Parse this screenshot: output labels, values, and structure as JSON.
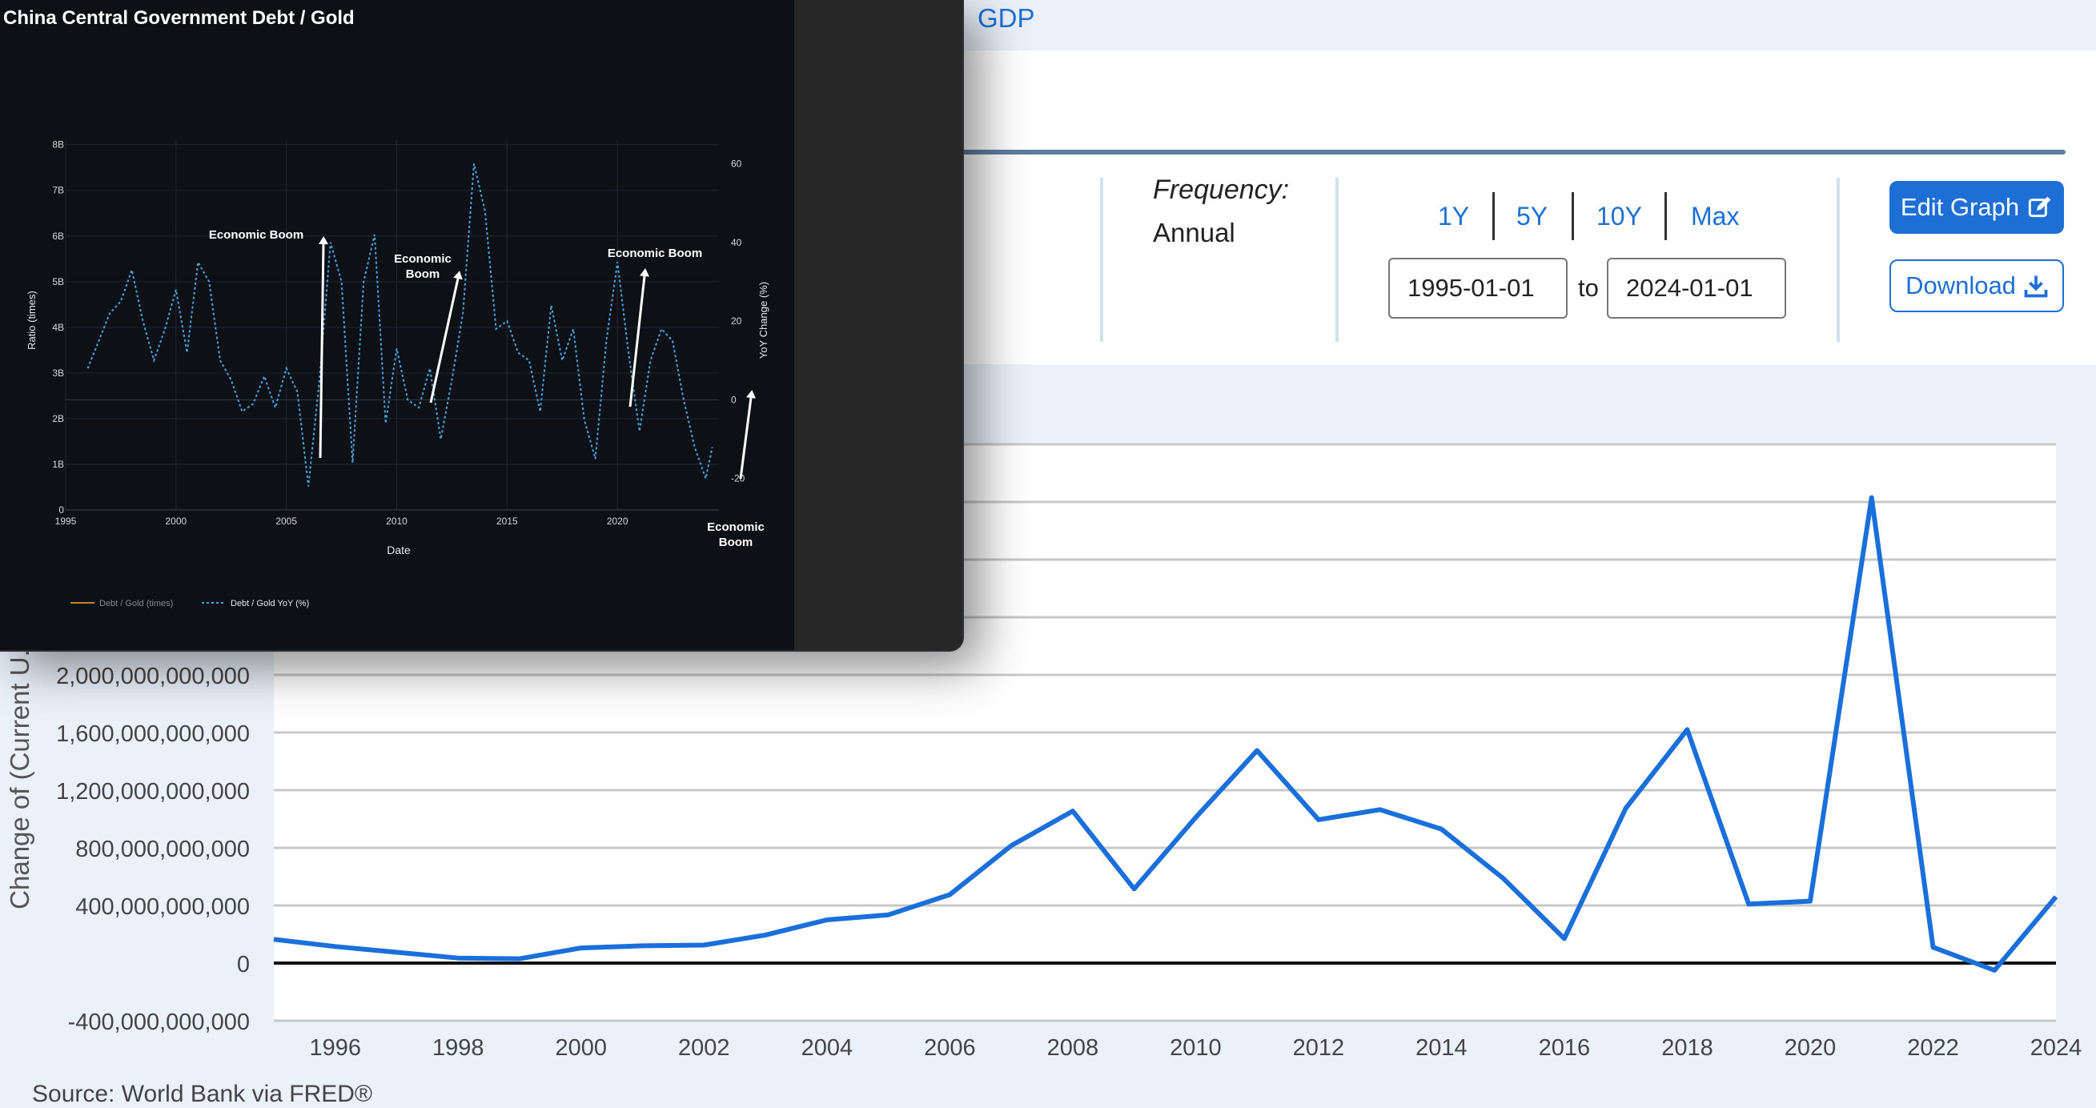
{
  "header": {
    "gdp_link": "GDP"
  },
  "controls": {
    "frequency_label": "Frequency:",
    "frequency_value": "Annual",
    "range_buttons": [
      "1Y",
      "5Y",
      "10Y",
      "Max"
    ],
    "start_date": "1995-01-01",
    "end_date": "2024-01-01",
    "to_label": "to",
    "edit_graph_label": "Edit Graph",
    "download_label": "Download"
  },
  "main_chart": {
    "ylabel": "Change of (Current U.S.",
    "source": "Source: World Bank via FRED®"
  },
  "chart_data": [
    {
      "type": "line",
      "xlabel": "",
      "ylabel": "Change of (Current U.S.",
      "x_ticks": [
        "1996",
        "1998",
        "2000",
        "2002",
        "2004",
        "2006",
        "2008",
        "2010",
        "2012",
        "2014",
        "2016",
        "2018",
        "2020",
        "2022",
        "2024"
      ],
      "y_ticks": [
        "-400,000,000,000",
        "0",
        "400,000,000,000",
        "800,000,000,000",
        "1,200,000,000,000",
        "1,600,000,000,000",
        "2,000,000,000,000"
      ],
      "ylim": [
        -400000000000,
        3600000000000
      ],
      "xlim": [
        1995,
        2024
      ],
      "grid": true,
      "series": [
        {
          "color": "#1a6fdb",
          "x": [
            1995,
            1996,
            1997,
            1998,
            1999,
            2000,
            2001,
            2002,
            2003,
            2004,
            2005,
            2006,
            2007,
            2008,
            2009,
            2010,
            2011,
            2012,
            2013,
            2014,
            2015,
            2016,
            2017,
            2018,
            2019,
            2020,
            2021,
            2022,
            2023,
            2024
          ],
          "y": [
            165000000000,
            115000000000,
            75000000000,
            35000000000,
            30000000000,
            105000000000,
            120000000000,
            125000000000,
            195000000000,
            300000000000,
            335000000000,
            475000000000,
            815000000000,
            1055000000000,
            515000000000,
            1010000000000,
            1475000000000,
            995000000000,
            1065000000000,
            930000000000,
            590000000000,
            170000000000,
            1075000000000,
            1620000000000,
            410000000000,
            430000000000,
            3230000000000,
            110000000000,
            -50000000000,
            460000000000
          ]
        }
      ]
    },
    {
      "type": "line",
      "title": "China Central Government Debt / Gold",
      "xlabel": "Date",
      "ylabel_left": "Ratio (times)",
      "ylabel_right": "YoY Change (%)",
      "left_ticks": [
        "0",
        "1B",
        "2B",
        "3B",
        "4B",
        "5B",
        "6B",
        "7B",
        "8B"
      ],
      "right_ticks": [
        "-20",
        "0",
        "20",
        "40",
        "60"
      ],
      "x_ticks": [
        "1995",
        "2000",
        "2005",
        "2010",
        "2015",
        "2020"
      ],
      "ylim_right": [
        -28,
        66
      ],
      "xlim": [
        1995,
        2024.6
      ],
      "legend_position": "bottom-left",
      "legend": [
        "Debt / Gold (times)",
        "Debt / Gold YoY (%)"
      ],
      "annotations": [
        "Economic Boom",
        "Economic Boom",
        "Economic Boom",
        "Economic Boom"
      ],
      "series": [
        {
          "name": "Debt / Gold (times)",
          "color": "#b8862b",
          "style": "solid",
          "axis": "left",
          "x": [],
          "y": []
        },
        {
          "name": "Debt / Gold YoY (%)",
          "color": "#4aa3df",
          "style": "dotted",
          "axis": "right",
          "x": [
            1996.0,
            1996.5,
            1997.0,
            1997.5,
            1998.0,
            1998.5,
            1999.0,
            1999.5,
            2000.0,
            2000.5,
            2001.0,
            2001.5,
            2002.0,
            2002.5,
            2003.0,
            2003.5,
            2004.0,
            2004.5,
            2005.0,
            2005.5,
            2006.0,
            2006.5,
            2007.0,
            2007.5,
            2008.0,
            2008.5,
            2009.0,
            2009.5,
            2010.0,
            2010.5,
            2011.0,
            2011.5,
            2012.0,
            2012.5,
            2013.0,
            2013.5,
            2014.0,
            2014.5,
            2015.0,
            2015.5,
            2016.0,
            2016.5,
            2017.0,
            2017.5,
            2018.0,
            2018.5,
            2019.0,
            2019.5,
            2020.0,
            2020.5,
            2021.0,
            2021.5,
            2022.0,
            2022.5,
            2023.0,
            2023.5,
            2024.0,
            2024.3
          ],
          "y": [
            8,
            15,
            22,
            25,
            33,
            20,
            10,
            18,
            28,
            12,
            35,
            30,
            10,
            5,
            -3,
            -1,
            6,
            -2,
            8,
            2,
            -22,
            5,
            40,
            30,
            -16,
            30,
            42,
            -6,
            13,
            0,
            -2,
            8,
            -10,
            5,
            22,
            60,
            48,
            18,
            20,
            12,
            10,
            -3,
            24,
            10,
            18,
            -5,
            -15,
            15,
            35,
            12,
            -8,
            10,
            18,
            15,
            0,
            -12,
            -20,
            -12
          ]
        }
      ]
    }
  ]
}
